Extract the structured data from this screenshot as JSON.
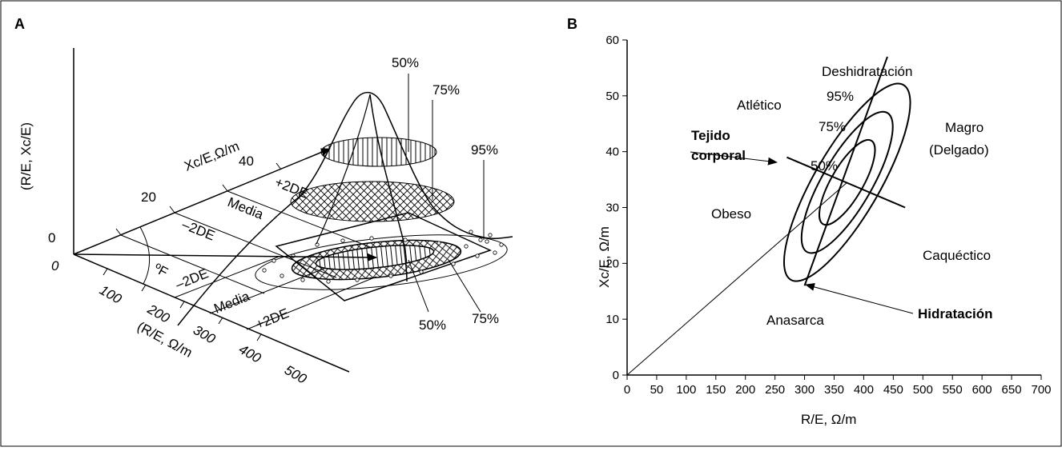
{
  "figure": {
    "panel_a": {
      "label": "A",
      "vertical_axis_label": "(R/E, Xc/E)",
      "vertical_zero": "0",
      "origin_zero": "0",
      "angle_label": "ºF",
      "xc_axis_label": "Xc/E,Ω/m",
      "xc_ticks": [
        "20",
        "40"
      ],
      "r_axis_label": "(R/E, Ω/m",
      "r_ticks": [
        "100",
        "200",
        "300",
        "400",
        "500"
      ],
      "xc_band_labels": [
        "–2DE",
        "Media",
        "+2DE"
      ],
      "r_band_labels": [
        "–2DE",
        "Media",
        "+2DE"
      ],
      "percentile_labels_top": [
        "50%",
        "75%",
        "95%"
      ],
      "percentile_labels_bottom": [
        "50%",
        "75%"
      ]
    },
    "panel_b": {
      "label": "B",
      "chart_data": {
        "type": "scatter",
        "xlabel": "R/E, Ω/m",
        "ylabel": "Xc/E, Ω/m",
        "xlim": [
          0,
          700
        ],
        "ylim": [
          0,
          60
        ],
        "x_ticks": [
          "0",
          "50",
          "100",
          "150",
          "200",
          "250",
          "300",
          "350",
          "400",
          "450",
          "500",
          "550",
          "600",
          "650",
          "700"
        ],
        "y_ticks": [
          "0",
          "10",
          "20",
          "30",
          "40",
          "50",
          "60"
        ],
        "ellipses": [
          {
            "label": "50%",
            "cx": 372,
            "cy": 34.5,
            "rx": 48,
            "ry": 9,
            "angle_deg": 60
          },
          {
            "label": "75%",
            "cx": 372,
            "cy": 34.5,
            "rx": 80,
            "ry": 14,
            "angle_deg": 60
          },
          {
            "label": "95%",
            "cx": 372,
            "cy": 34.5,
            "rx": 112,
            "ry": 18.5,
            "angle_deg": 60
          }
        ],
        "hydration_axis": {
          "from": [
            300,
            16
          ],
          "to": [
            440,
            57
          ]
        },
        "tissue_axis": {
          "from": [
            270,
            39
          ],
          "to": [
            470,
            30
          ]
        },
        "origin_line": {
          "from": [
            0,
            0
          ],
          "to": [
            372,
            34.5
          ]
        },
        "region_labels": [
          "Deshidratación",
          "Atlético",
          "Magro",
          "(Delgado)",
          "Obeso",
          "Caquéctico",
          "Anasarca"
        ],
        "arrow_labels": {
          "tissue_line1": "Tejido",
          "tissue_line2": "corporal",
          "hydration": "Hidratación"
        }
      }
    }
  }
}
